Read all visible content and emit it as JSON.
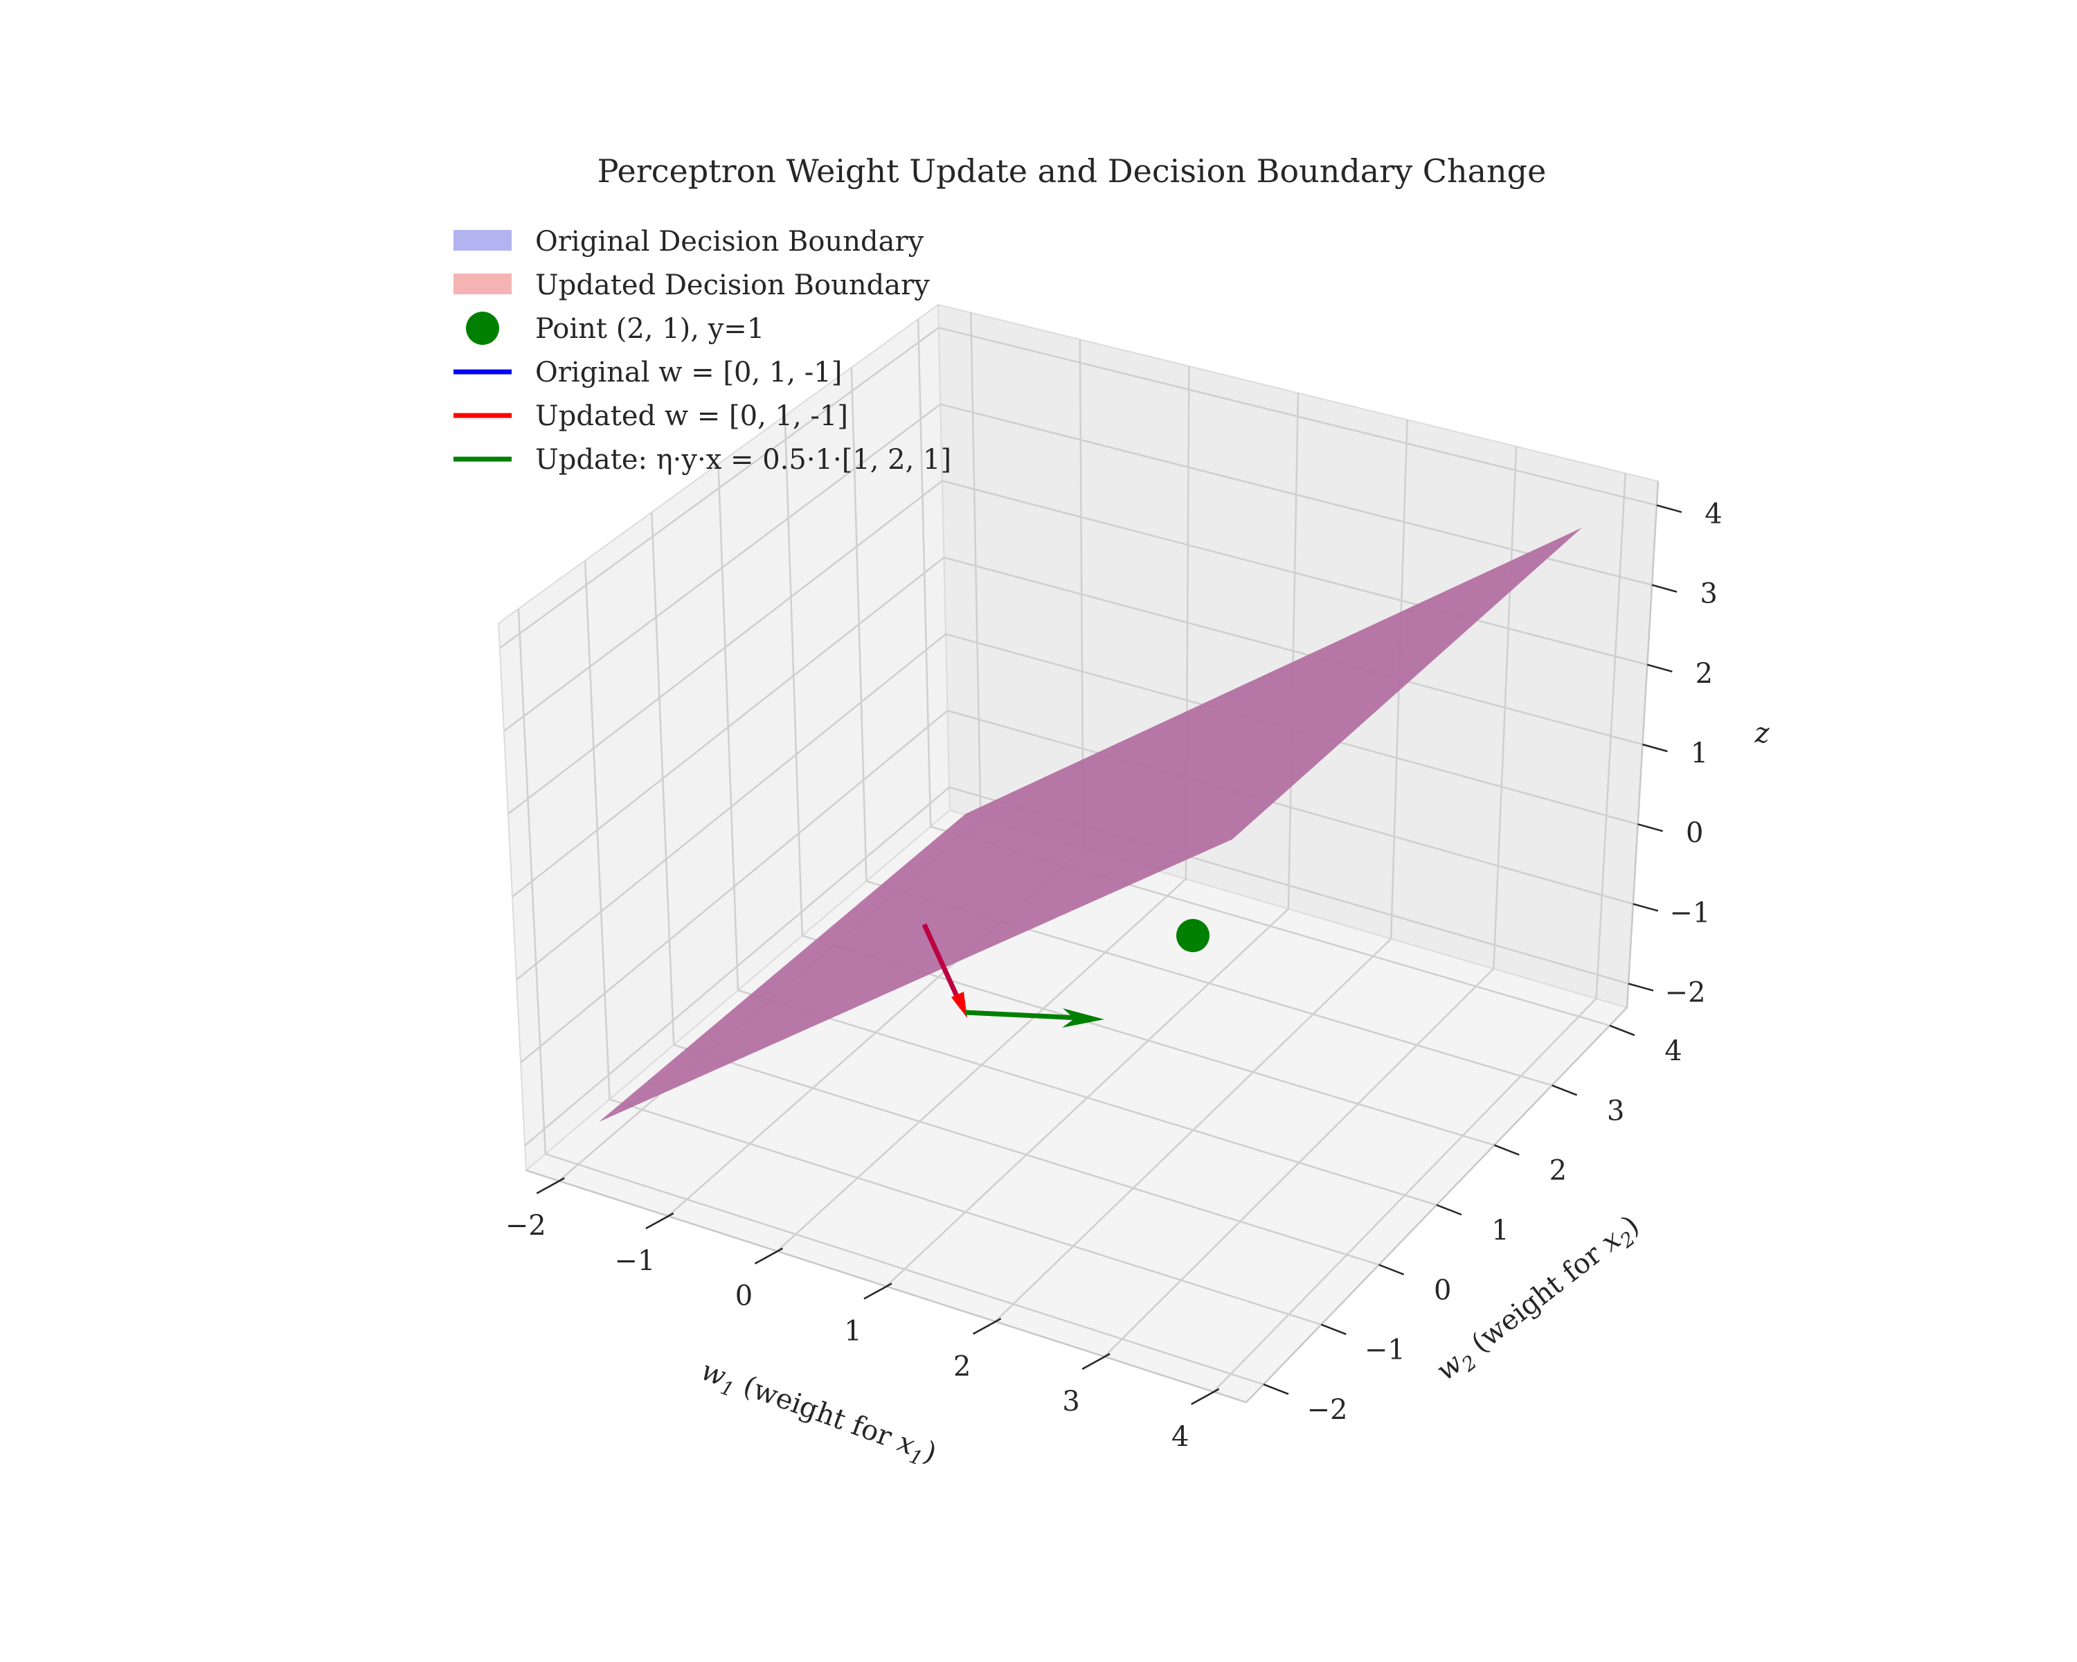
{
  "chart_data": {
    "type": "3d-surface",
    "title": "Perceptron Weight Update and Decision Boundary Change",
    "xlabel_main": "w",
    "xlabel_sub": "1",
    "xlabel_rest": " (weight for ",
    "xlabel_var": "x",
    "xlabel_var_sub": "1",
    "xlabel_close": ")",
    "ylabel_main": "w",
    "ylabel_sub": "2",
    "ylabel_rest": " (weight for ",
    "ylabel_var": "x",
    "ylabel_var_sub": "2",
    "ylabel_close": ")",
    "zlabel": "z",
    "xlim": [
      -2.3,
      4.3
    ],
    "ylim": [
      -2.3,
      4.3
    ],
    "zlim": [
      -2.3,
      4.3
    ],
    "xticks": [
      "−2",
      "−1",
      "0",
      "1",
      "2",
      "3",
      "4"
    ],
    "yticks": [
      "−2",
      "−1",
      "0",
      "1",
      "2",
      "3",
      "4"
    ],
    "zticks": [
      "−2",
      "−1",
      "0",
      "1",
      "2",
      "3",
      "4"
    ],
    "legend_position": "upper-left",
    "legend": [
      {
        "label": "Original Decision Boundary",
        "kind": "patch",
        "color": "#b3b3f0"
      },
      {
        "label": "Updated Decision Boundary",
        "kind": "patch",
        "color": "#f6b3b3"
      },
      {
        "label": "Point (2, 1), y=1",
        "kind": "marker",
        "color": "#008000"
      },
      {
        "label": "Original w = [0, 1, -1]",
        "kind": "line",
        "color": "#0000ff"
      },
      {
        "label": "Updated w = [0, 1, -1]",
        "kind": "line",
        "color": "#ff0000"
      },
      {
        "label": "Update: η·y·x = 0.5·1·[1, 2, 1]",
        "kind": "line",
        "color": "#008000"
      }
    ],
    "surface_color": "#b16a9f",
    "point": {
      "x": 2,
      "y": 1,
      "z": 0,
      "color": "#008000"
    },
    "vectors": [
      {
        "name": "original w",
        "color": "#0000ff"
      },
      {
        "name": "updated w",
        "color": "#ff0000"
      },
      {
        "name": "update",
        "color": "#008000"
      }
    ]
  }
}
